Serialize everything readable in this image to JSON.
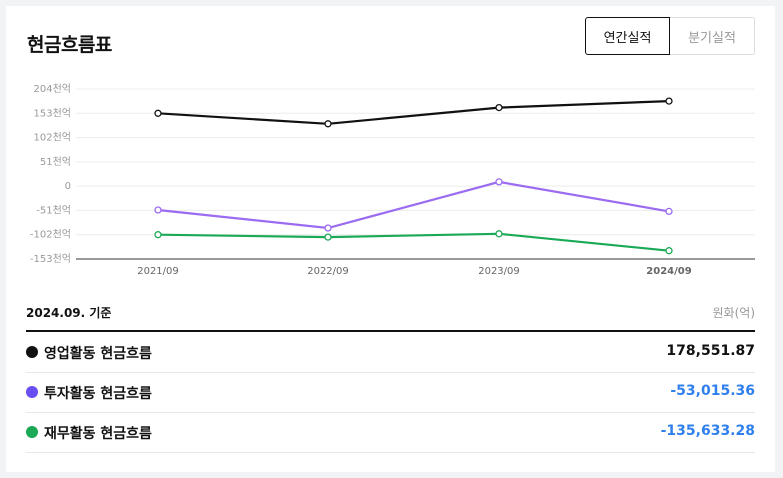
{
  "title": "현금흐름표",
  "toggle": {
    "annual": "연간실적",
    "quarterly": "분기실적"
  },
  "chart_data": {
    "type": "line",
    "categories": [
      "2021/09",
      "2022/09",
      "2023/09",
      "2024/09"
    ],
    "y_ticks": [
      "204천억",
      "153천억",
      "102천억",
      "51천억",
      "0",
      "-51천억",
      "-102천억",
      "-153천억"
    ],
    "ylim": [
      -153,
      204
    ],
    "series": [
      {
        "name": "영업활동 현금흐름",
        "color": "#111111",
        "values": [
          153,
          131,
          165,
          178.55
        ]
      },
      {
        "name": "투자활동 현금흐름",
        "color": "#9b6bf0",
        "values": [
          -50,
          -88,
          9,
          -53.02
        ]
      },
      {
        "name": "재무활동 현금흐름",
        "color": "#1aaa55",
        "values": [
          -102,
          -107,
          -100,
          -135.63
        ]
      }
    ]
  },
  "table": {
    "basis": "2024.09. 기준",
    "unit": "원화(억)",
    "rows": [
      {
        "label": "영업활동 현금흐름",
        "value": "178,551.87",
        "dot_color": "#111111",
        "value_color": "#111111"
      },
      {
        "label": "투자활동 현금흐름",
        "value": "-53,015.36",
        "dot_color": "#6a4ff0",
        "value_color": "#2f80ed"
      },
      {
        "label": "재무활동 현금흐름",
        "value": "-135,633.28",
        "dot_color": "#1aaa55",
        "value_color": "#2f80ed"
      }
    ]
  }
}
